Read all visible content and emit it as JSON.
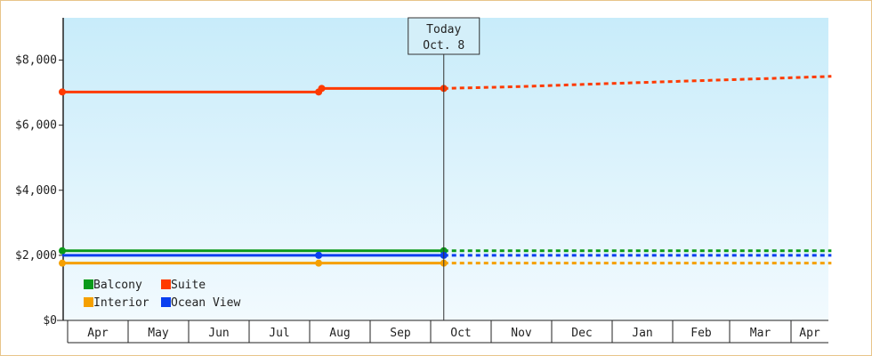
{
  "chart_data": {
    "type": "line",
    "title": "",
    "xlabel": "",
    "ylabel": "",
    "x_months": [
      "Apr",
      "May",
      "Jun",
      "Jul",
      "Aug",
      "Sep",
      "Oct",
      "Nov",
      "Dec",
      "Jan",
      "Feb",
      "Mar",
      "Apr"
    ],
    "y_ticks": [
      "$0",
      "$2,000",
      "$4,000",
      "$6,000",
      "$8,000"
    ],
    "ylim": [
      0,
      9300
    ],
    "today_label": "Today",
    "today_date": "Oct. 8",
    "series": [
      {
        "name": "Balcony",
        "color": "#0a9a1a",
        "history": [
          [
            0,
            2140
          ],
          [
            6.25,
            2140
          ]
        ],
        "markers": [
          0,
          6.25
        ],
        "forecast": [
          [
            6.25,
            2140
          ],
          [
            12.6,
            2140
          ]
        ]
      },
      {
        "name": "Suite",
        "color": "#ff3a00",
        "history": [
          [
            0,
            7020
          ],
          [
            4.2,
            7020
          ],
          [
            4.25,
            7130
          ],
          [
            6.25,
            7130
          ]
        ],
        "markers": [
          0,
          4.2,
          4.25,
          6.25
        ],
        "forecast": [
          [
            6.25,
            7130
          ],
          [
            7.4,
            7180
          ],
          [
            8.8,
            7270
          ],
          [
            10.3,
            7360
          ],
          [
            11.5,
            7430
          ],
          [
            12.6,
            7500
          ]
        ]
      },
      {
        "name": "Interior",
        "color": "#f5a000",
        "history": [
          [
            0,
            1760
          ],
          [
            6.25,
            1760
          ]
        ],
        "markers": [
          0,
          4.2,
          6.25
        ],
        "forecast": [
          [
            6.25,
            1760
          ],
          [
            12.6,
            1760
          ]
        ]
      },
      {
        "name": "Ocean View",
        "color": "#0a3ff0",
        "history": [
          [
            0,
            2000
          ],
          [
            6.25,
            2000
          ]
        ],
        "markers": [
          4.2,
          6.25
        ],
        "forecast": [
          [
            6.25,
            2000
          ],
          [
            12.6,
            2000
          ]
        ]
      }
    ]
  }
}
